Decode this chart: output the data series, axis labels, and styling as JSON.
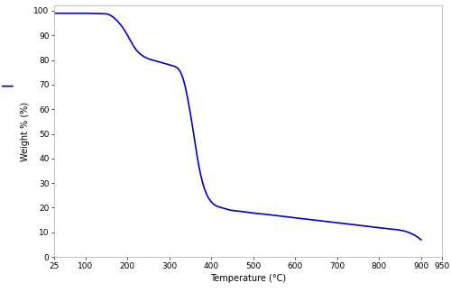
{
  "title": "",
  "xlabel": "Temperature (°C)",
  "ylabel": "Weight % (%)",
  "xlim": [
    25,
    950
  ],
  "ylim": [
    0,
    102
  ],
  "xticks": [
    25,
    100,
    200,
    300,
    400,
    500,
    600,
    700,
    800,
    900,
    950
  ],
  "xtick_labels": [
    "25",
    "100",
    "200",
    "300",
    "400",
    "500",
    "600",
    "700",
    "800",
    "900",
    "950"
  ],
  "yticks": [
    0,
    10,
    20,
    30,
    40,
    50,
    60,
    70,
    80,
    90,
    100
  ],
  "line_color": "#0000cc",
  "line_width": 1.2,
  "background_color": "#ffffff",
  "spine_color": "#aaaaaa",
  "key_x": [
    25,
    60,
    100,
    140,
    155,
    165,
    175,
    185,
    195,
    205,
    215,
    230,
    250,
    270,
    290,
    305,
    315,
    325,
    335,
    345,
    355,
    365,
    375,
    385,
    395,
    405,
    415,
    425,
    435,
    445,
    455,
    470,
    490,
    520,
    570,
    620,
    670,
    720,
    770,
    820,
    870,
    900
  ],
  "key_y": [
    99.0,
    99.0,
    99.0,
    98.8,
    98.5,
    97.5,
    96.0,
    94.0,
    91.5,
    88.5,
    85.5,
    82.5,
    80.5,
    79.5,
    78.5,
    77.8,
    77.2,
    75.5,
    71.0,
    63.0,
    53.0,
    42.0,
    33.0,
    27.0,
    23.5,
    21.5,
    20.5,
    20.0,
    19.5,
    19.0,
    18.8,
    18.5,
    18.0,
    17.5,
    16.5,
    15.5,
    14.5,
    13.5,
    12.5,
    11.5,
    10.0,
    7.0
  ]
}
